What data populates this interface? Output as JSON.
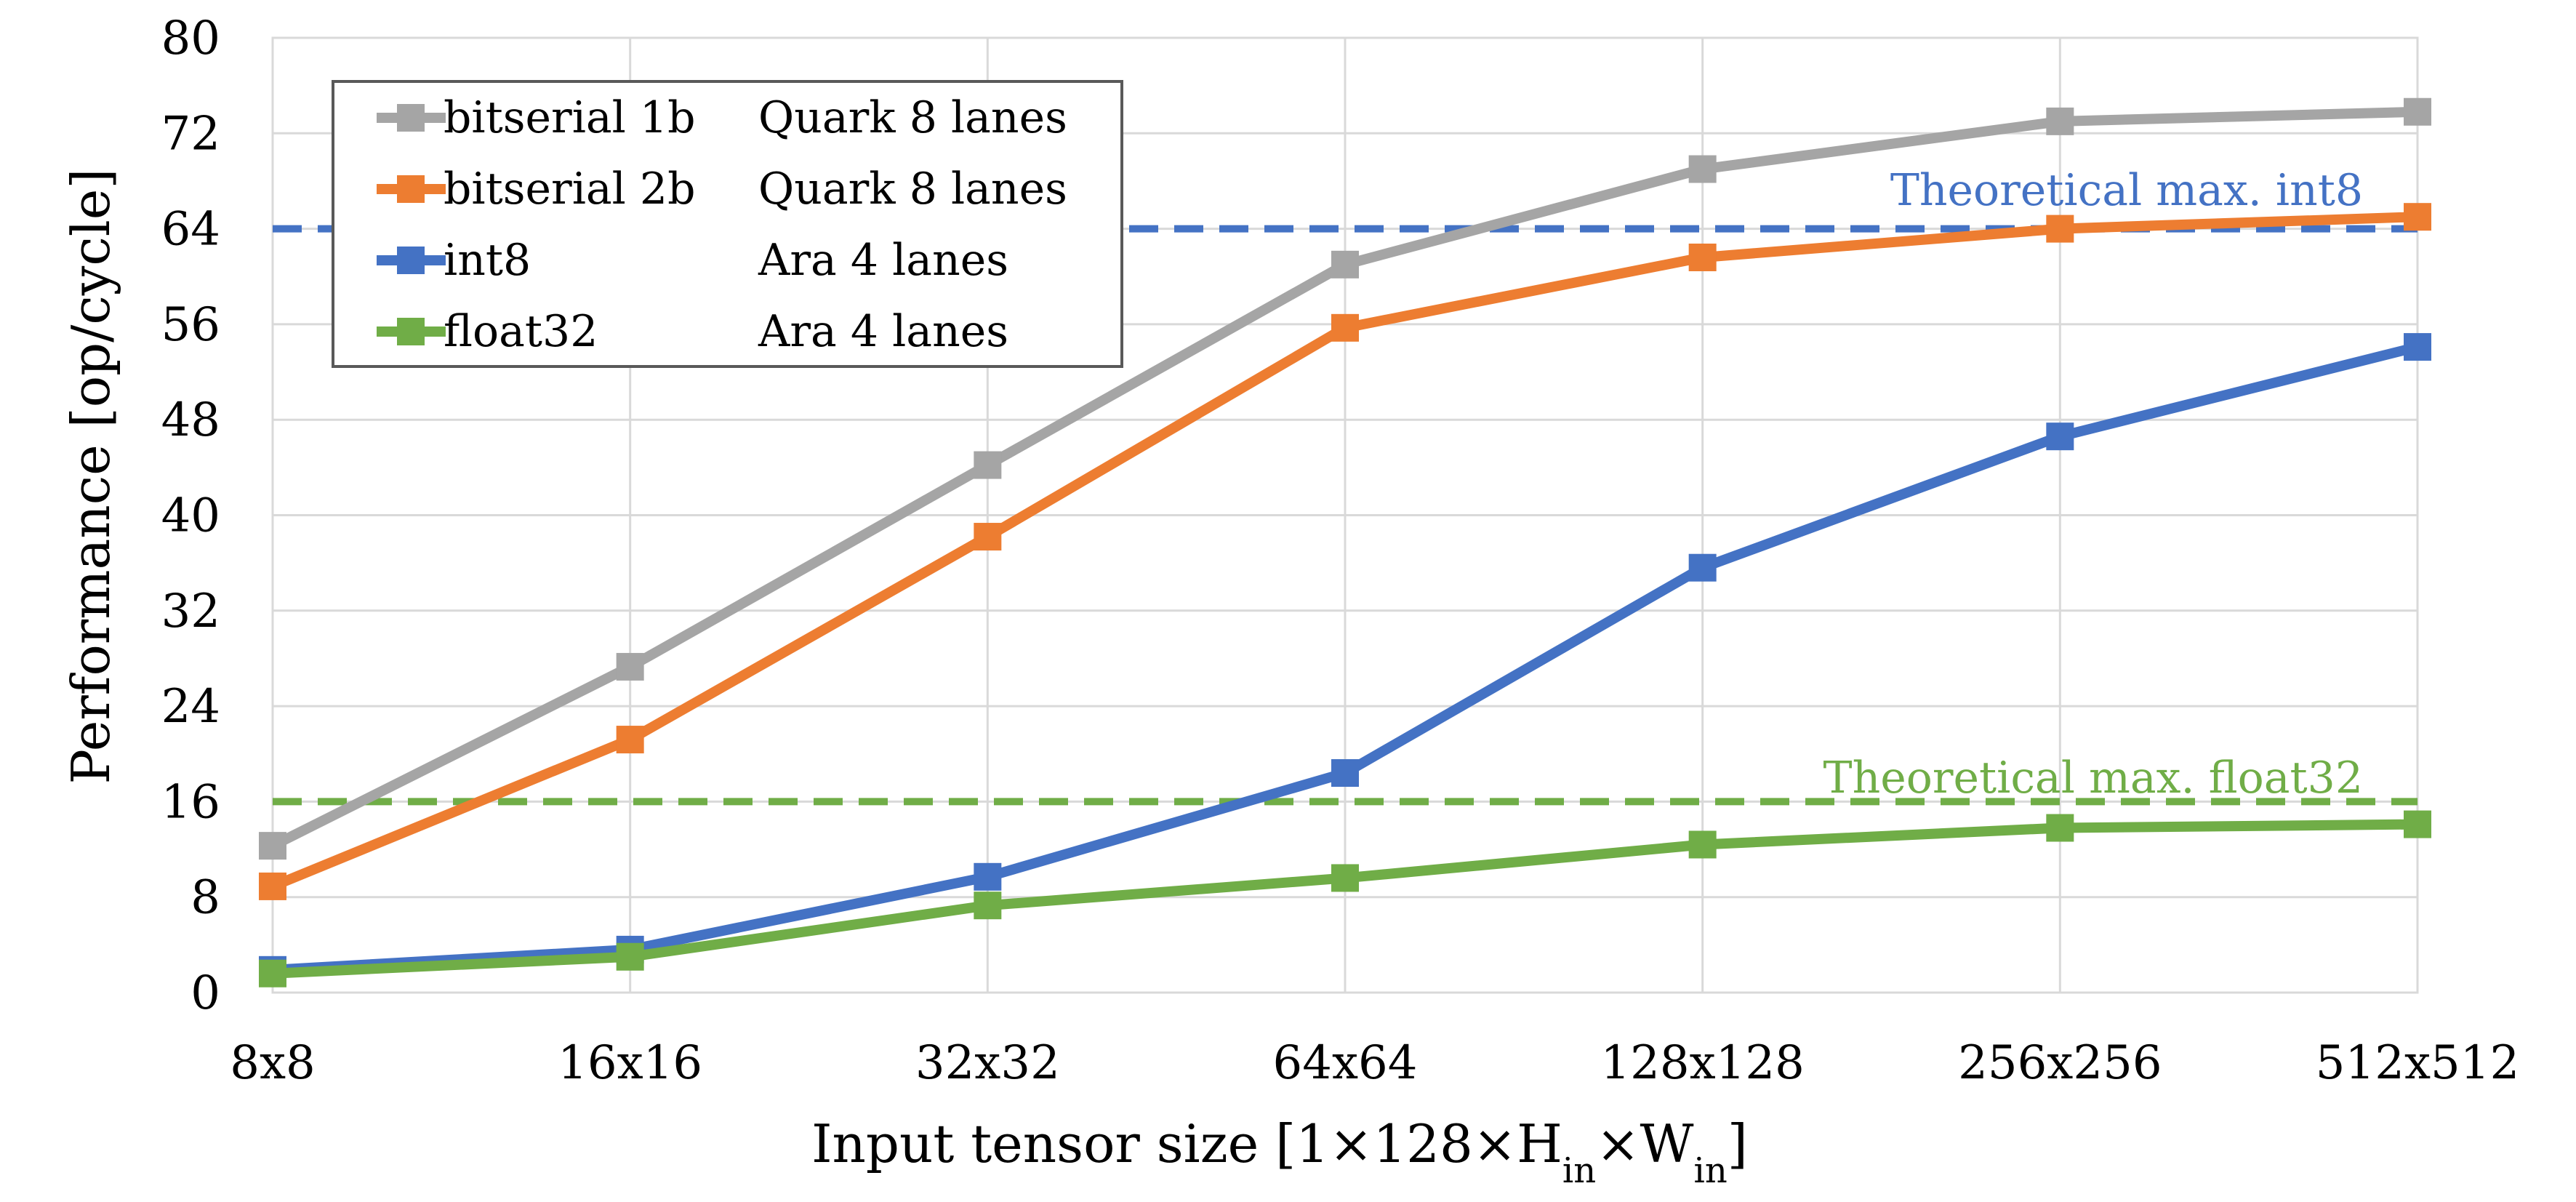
{
  "chart_data": {
    "type": "line",
    "title": "",
    "xlabel": "Input tensor size [1×128×H",
    "xlabel_sub1": "in",
    "xlabel_mid": "×W",
    "xlabel_sub2": "in",
    "xlabel_end": "]",
    "ylabel": "Performance [op/cycle]",
    "categories": [
      "8x8",
      "16x16",
      "32x32",
      "64x64",
      "128x128",
      "256x256",
      "512x512"
    ],
    "ylim": [
      0,
      80
    ],
    "yticks": [
      0,
      8,
      16,
      24,
      32,
      40,
      48,
      56,
      64,
      72,
      80
    ],
    "grid": true,
    "legend_position": "top-left",
    "series": [
      {
        "name": "bitserial 1b",
        "config": "Quark 8 lanes",
        "color": "#a5a5a5",
        "values": [
          12.3,
          27.3,
          44.2,
          61.0,
          69.0,
          73.0,
          73.8
        ]
      },
      {
        "name": "bitserial 2b",
        "config": "Quark 8 lanes",
        "color": "#ed7d31",
        "values": [
          8.9,
          21.2,
          38.2,
          55.7,
          61.6,
          64.0,
          65.0
        ]
      },
      {
        "name": "int8",
        "config": "Ara 4 lanes",
        "color": "#4472c4",
        "values": [
          1.9,
          3.6,
          9.7,
          18.4,
          35.6,
          46.6,
          54.1
        ]
      },
      {
        "name": "float32",
        "config": "Ara 4 lanes",
        "color": "#70ad47",
        "values": [
          1.6,
          3.0,
          7.3,
          9.6,
          12.4,
          13.8,
          14.1
        ]
      }
    ],
    "reference_lines": [
      {
        "label": "Theoretical max. int8",
        "value": 64,
        "color": "#4472c4",
        "text_color": "#4472c4"
      },
      {
        "label": "Theoretical max. float32",
        "value": 16,
        "color": "#70ad47",
        "text_color": "#70ad47"
      }
    ]
  }
}
